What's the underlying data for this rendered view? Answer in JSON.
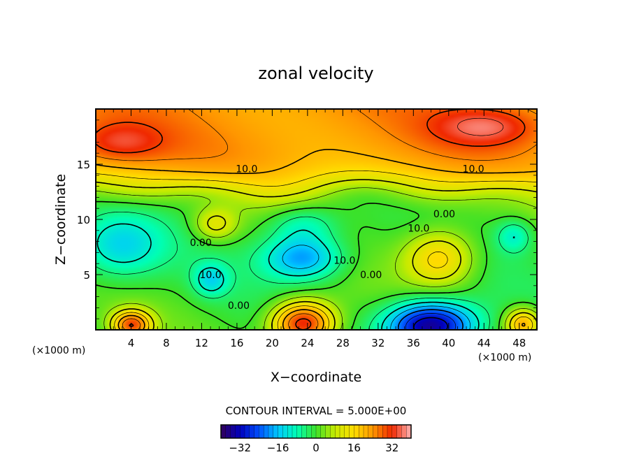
{
  "chart_data": {
    "type": "heatmap",
    "title": "zonal velocity",
    "xlabel": "X−coordinate",
    "ylabel": "Z−coordinate",
    "x_unit_label": "(×1000 m)",
    "x_unit_label_right": "(×1000 m)",
    "xlim": [
      0,
      50
    ],
    "ylim": [
      0,
      20
    ],
    "x_ticks": [
      4,
      8,
      12,
      16,
      20,
      24,
      28,
      32,
      36,
      40,
      44,
      48
    ],
    "y_ticks": [
      5,
      10,
      15
    ],
    "contour_interval_text": "CONTOUR INTERVAL = 5.000E+00",
    "colorbar": {
      "range": [
        -40,
        40
      ],
      "ticks": [
        -32,
        -16,
        0,
        16,
        32
      ],
      "tick_labels": [
        "−32",
        "−16",
        "0",
        "16",
        "32"
      ]
    },
    "contour_labels": [
      {
        "text": "10.0",
        "x": 17.1,
        "z": 14.6
      },
      {
        "text": "10.0",
        "x": 42.8,
        "z": 14.6
      },
      {
        "text": "0.00",
        "x": 39.5,
        "z": 10.5
      },
      {
        "text": "10.0",
        "x": 36.6,
        "z": 9.2
      },
      {
        "text": "0.00",
        "x": 11.9,
        "z": 7.9
      },
      {
        "text": "10.0",
        "x": 28.2,
        "z": 6.3
      },
      {
        "text": "0.00",
        "x": 31.2,
        "z": 5.0
      },
      {
        "text": "10.0",
        "x": 13.0,
        "z": 5.0
      },
      {
        "text": "0.00",
        "x": 16.2,
        "z": 2.2
      }
    ],
    "field_features": [
      {
        "kind": "jet",
        "x": 23.5,
        "z": 0.5,
        "amp": 35,
        "sx": 3.5,
        "sz": 2.0
      },
      {
        "kind": "jet",
        "x": 38.0,
        "z": 0.3,
        "amp": -38,
        "sx": 5.0,
        "sz": 2.2
      },
      {
        "kind": "jet",
        "x": 4.0,
        "z": 0.4,
        "amp": 28,
        "sx": 2.2,
        "sz": 1.3
      },
      {
        "kind": "jet",
        "x": 48.5,
        "z": 0.5,
        "amp": 22,
        "sx": 2.0,
        "sz": 1.4
      },
      {
        "kind": "jet",
        "x": 39.0,
        "z": 6.5,
        "amp": 18,
        "sx": 4.0,
        "sz": 2.6
      },
      {
        "kind": "jet",
        "x": 23.5,
        "z": 6.5,
        "amp": -20,
        "sx": 4.5,
        "sz": 2.0
      },
      {
        "kind": "jet",
        "x": 2.5,
        "z": 7.5,
        "amp": -14,
        "sx": 5.0,
        "sz": 3.0
      },
      {
        "kind": "jet",
        "x": 13.0,
        "z": 4.5,
        "amp": -12,
        "sx": 2.0,
        "sz": 1.5
      },
      {
        "kind": "jet",
        "x": 23.5,
        "z": 9.5,
        "amp": -10,
        "sx": 4.0,
        "sz": 1.8
      },
      {
        "kind": "jet",
        "x": 13.5,
        "z": 9.5,
        "amp": 12,
        "sx": 2.5,
        "sz": 1.5
      },
      {
        "kind": "jet",
        "x": 47.5,
        "z": 8.5,
        "amp": -10,
        "sx": 2.0,
        "sz": 1.5
      },
      {
        "kind": "jet",
        "x": 44.5,
        "z": 18.5,
        "amp": 12,
        "sx": 6.0,
        "sz": 1.8
      },
      {
        "kind": "jet",
        "x": 2.5,
        "z": 17.0,
        "amp": 10,
        "sx": 5.0,
        "sz": 1.8
      }
    ]
  }
}
